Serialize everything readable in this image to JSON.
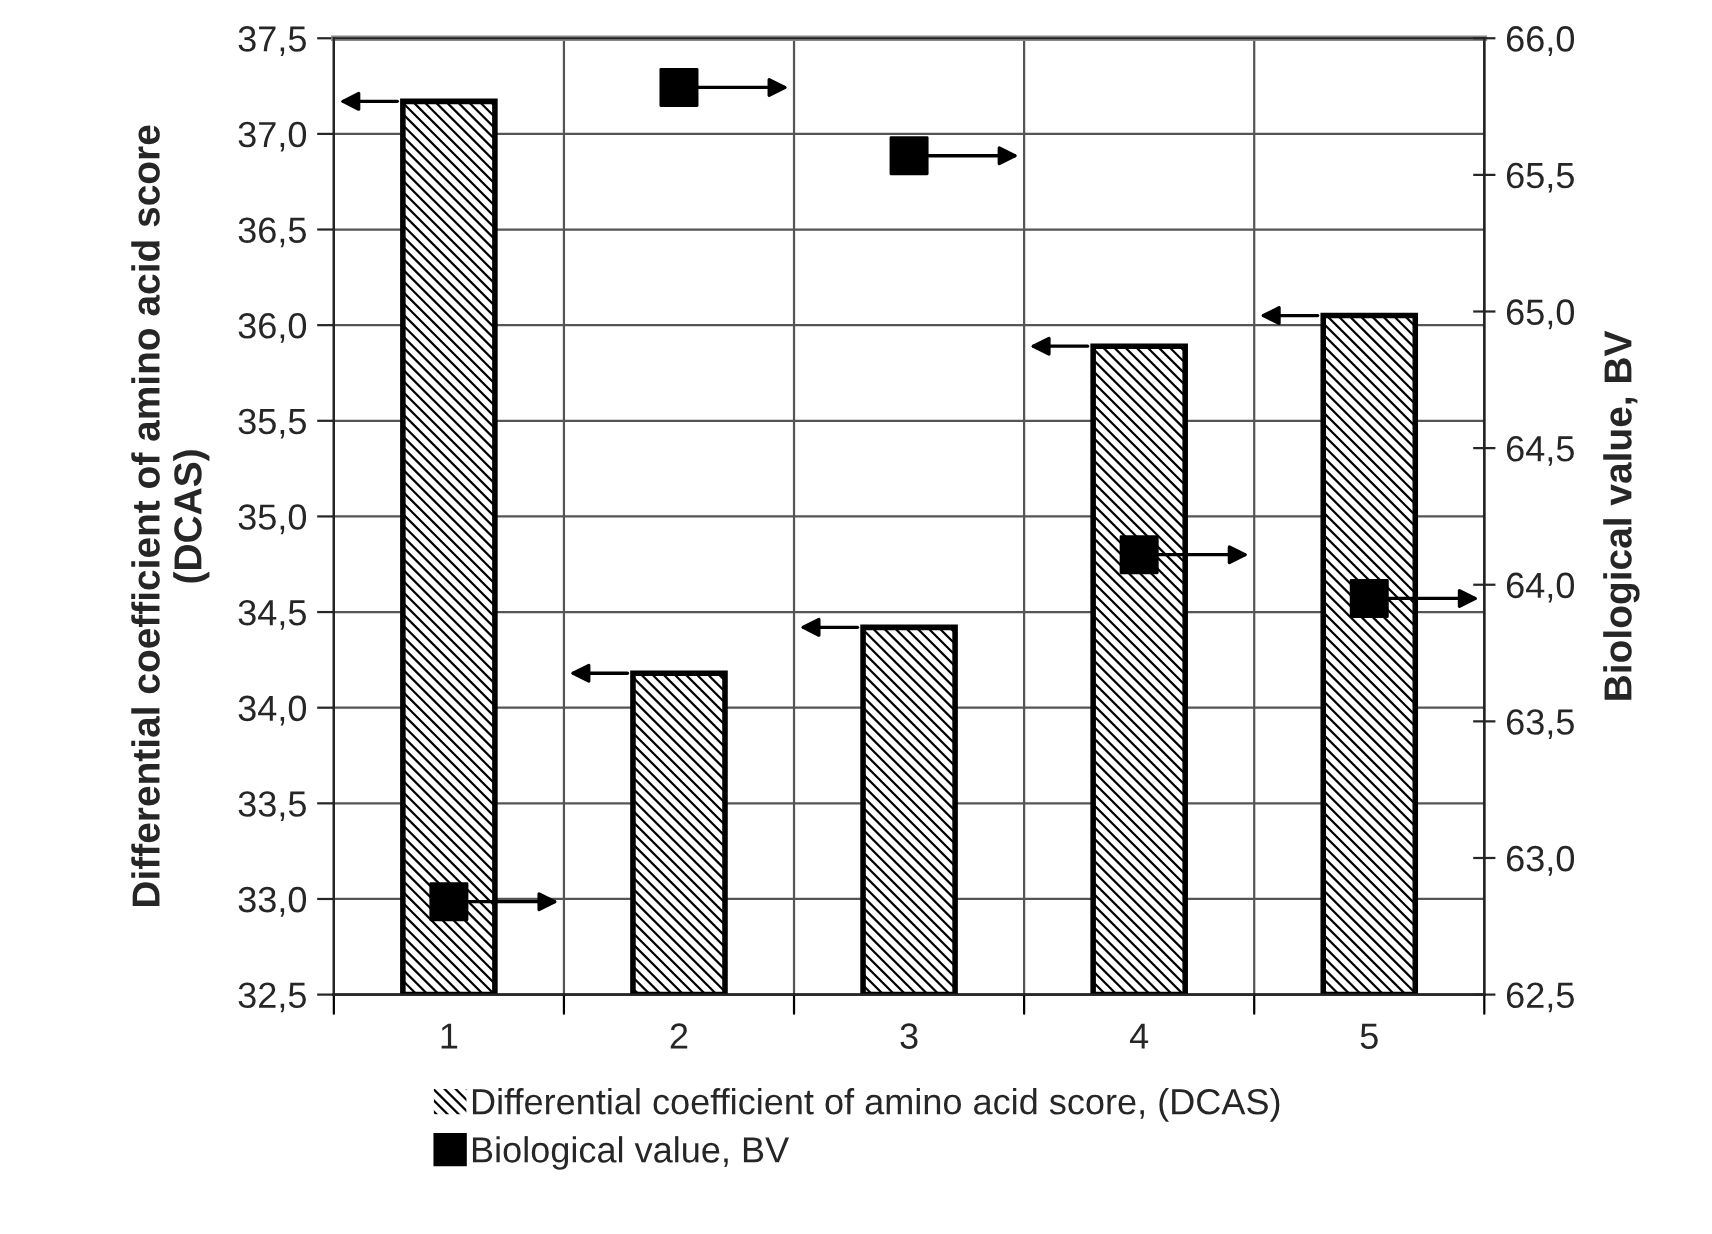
{
  "chart_data": {
    "type": "bar",
    "categories": [
      "1",
      "2",
      "3",
      "4",
      "5"
    ],
    "ylabel": "Differential coefficient of amino acid score\n(DCAS)",
    "y2label": "Biological value, BV",
    "series": [
      {
        "name": "Differential coefficient of amino acid score, (DCAS)",
        "color": "#000000",
        "values": [
          37.17,
          34.18,
          34.42,
          35.89,
          36.05
        ]
      },
      {
        "name": "Biological value, BV",
        "type": "scatter",
        "axis": "y2",
        "color": "#000000",
        "values": [
          62.84,
          65.82,
          65.57,
          64.11,
          63.95
        ]
      }
    ],
    "ylim": [
      32.5,
      37.5
    ],
    "yticks": [
      {
        "value": 32.5,
        "label": "32,5"
      },
      {
        "value": 33.0,
        "label": "33,0"
      },
      {
        "value": 33.5,
        "label": "33,5"
      },
      {
        "value": 34.0,
        "label": "34,0"
      },
      {
        "value": 34.5,
        "label": "34,5"
      },
      {
        "value": 35.0,
        "label": "35,0"
      },
      {
        "value": 35.5,
        "label": "35,5"
      },
      {
        "value": 36.0,
        "label": "36,0"
      },
      {
        "value": 36.5,
        "label": "36,5"
      },
      {
        "value": 37.0,
        "label": "37,0"
      },
      {
        "value": 37.5,
        "label": "37,5"
      }
    ],
    "y2lim": [
      62.5,
      66.0
    ],
    "y2ticks": [
      {
        "value": 62.5,
        "label": "62,5"
      },
      {
        "value": 63.0,
        "label": "63,0"
      },
      {
        "value": 63.5,
        "label": "63,5"
      },
      {
        "value": 64.0,
        "label": "64,0"
      },
      {
        "value": 64.5,
        "label": "64,5"
      },
      {
        "value": 65.0,
        "label": "65,0"
      },
      {
        "value": 65.5,
        "label": "65,5"
      },
      {
        "value": 66.0,
        "label": "66,0"
      }
    ],
    "grid": true,
    "marker": "square",
    "legend": "bottom"
  }
}
